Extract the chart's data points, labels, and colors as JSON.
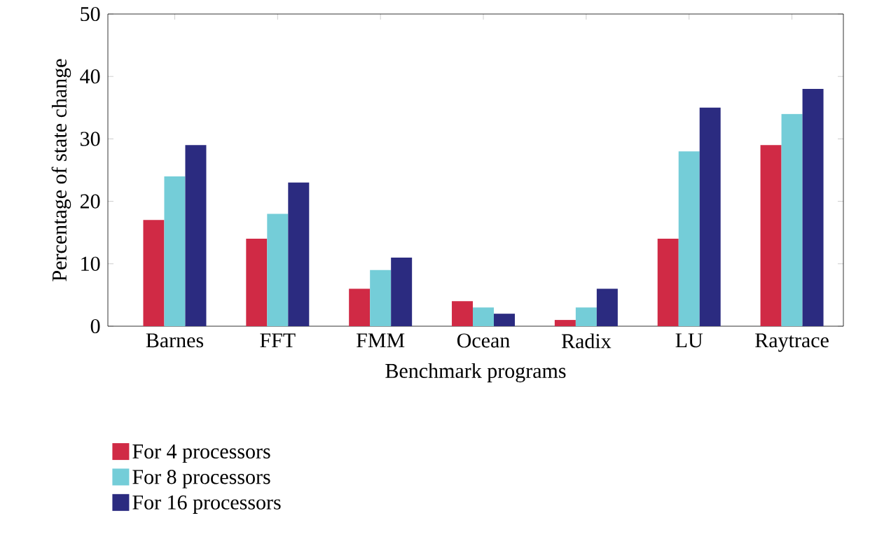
{
  "chart_data": {
    "type": "bar",
    "xlabel": "Benchmark programs",
    "ylabel": "Percentage of state change",
    "categories": [
      "Barnes",
      "FFT",
      "FMM",
      "Ocean",
      "Radix",
      "LU",
      "Raytrace"
    ],
    "series": [
      {
        "name": "For 4 processors",
        "color": "#d02a45",
        "values": [
          17,
          14,
          6,
          4,
          1,
          14,
          29
        ]
      },
      {
        "name": "For 8 processors",
        "color": "#74cdd8",
        "values": [
          24,
          18,
          9,
          3,
          3,
          28,
          34
        ]
      },
      {
        "name": "For 16 processors",
        "color": "#2b2b80",
        "values": [
          29,
          23,
          11,
          2,
          6,
          35,
          38
        ]
      }
    ],
    "ylim": [
      0,
      50
    ],
    "yticks": [
      0,
      10,
      20,
      30,
      40,
      50
    ],
    "grid": false,
    "legend": "bottom left"
  }
}
